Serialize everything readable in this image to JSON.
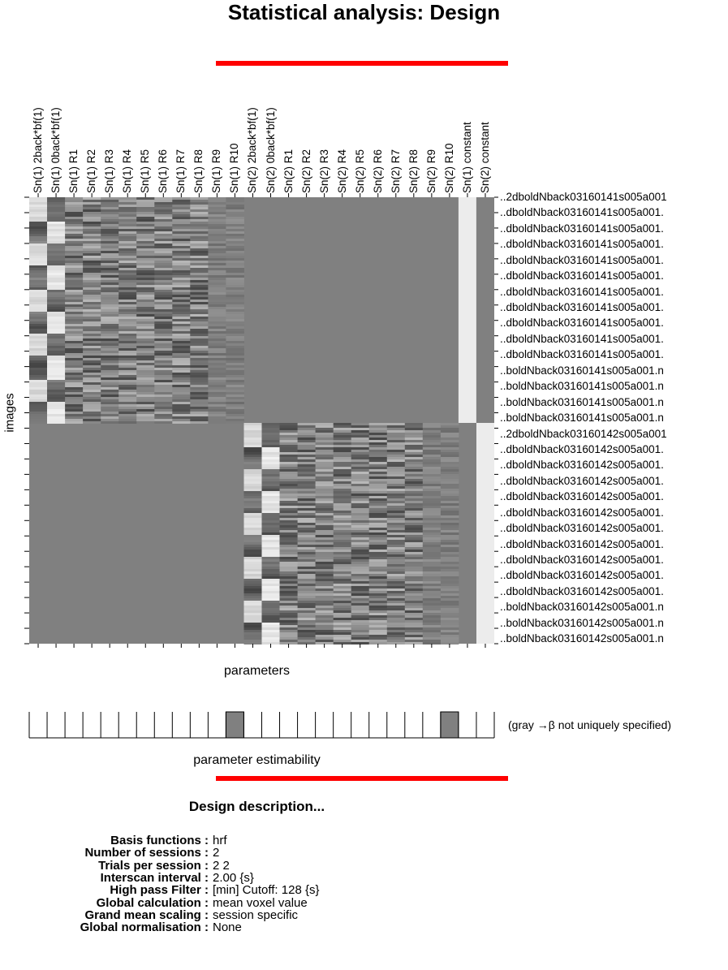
{
  "title": "Statistical analysis: Design",
  "y_axis_label": "images",
  "x_axis_label": "parameters",
  "estimability_label": "parameter estimability",
  "estimability_note": "(gray →β not uniquely specified)",
  "columns": [
    "Sn(1) 2back*bf(1)",
    "Sn(1) 0back*bf(1)",
    "Sn(1) R1",
    "Sn(1) R2",
    "Sn(1) R3",
    "Sn(1) R4",
    "Sn(1) R5",
    "Sn(1) R6",
    "Sn(1) R7",
    "Sn(1) R8",
    "Sn(1) R9",
    "Sn(1) R10",
    "Sn(2) 2back*bf(1)",
    "Sn(2) 0back*bf(1)",
    "Sn(2) R1",
    "Sn(2) R2",
    "Sn(2) R3",
    "Sn(2) R4",
    "Sn(2) R5",
    "Sn(2) R6",
    "Sn(2) R7",
    "Sn(2) R8",
    "Sn(2) R9",
    "Sn(2) R10",
    "Sn(1) constant",
    "Sn(2) constant"
  ],
  "rows": [
    "..2dboldNback03160141s005a001",
    "..dboldNback03160141s005a001.",
    "..dboldNback03160141s005a001.",
    "..dboldNback03160141s005a001.",
    "..dboldNback03160141s005a001.",
    "..dboldNback03160141s005a001.",
    "..dboldNback03160141s005a001.",
    "..dboldNback03160141s005a001.",
    "..dboldNback03160141s005a001.",
    "..dboldNback03160141s005a001.",
    "..dboldNback03160141s005a001.",
    "..boldNback03160141s005a001.n",
    "..boldNback03160141s005a001.n",
    "..boldNback03160141s005a001.n",
    "..boldNback03160141s005a001.n",
    "..2dboldNback03160142s005a001",
    "..dboldNback03160142s005a001.",
    "..dboldNback03160142s005a001.",
    "..dboldNback03160142s005a001.",
    "..dboldNback03160142s005a001.",
    "..dboldNback03160142s005a001.",
    "..dboldNback03160142s005a001.",
    "..dboldNback03160142s005a001.",
    "..dboldNback03160142s005a001.",
    "..dboldNback03160142s005a001.",
    "..dboldNback03160142s005a001.",
    "..boldNback03160142s005a001.n",
    "..boldNback03160142s005a001.n",
    "..boldNback03160142s005a001.n"
  ],
  "estimability_gray": [
    11,
    23
  ],
  "description_heading": "Design description...",
  "description": [
    {
      "key": "Basis functions :",
      "value": "hrf"
    },
    {
      "key": "Number of sessions :",
      "value": "2"
    },
    {
      "key": "Trials per session :",
      "value": "2  2"
    },
    {
      "key": "Interscan interval :",
      "value": "2.00 {s}"
    },
    {
      "key": "High pass Filter :",
      "value": "[min] Cutoff: 128 {s}"
    },
    {
      "key": "Global calculation :",
      "value": "mean voxel value"
    },
    {
      "key": "Grand mean scaling :",
      "value": "session specific"
    },
    {
      "key": "Global normalisation :",
      "value": "None"
    }
  ],
  "colors": {
    "accent_bar": "#ff0000",
    "matrix_background": "#808080",
    "gray_cell": "#808080"
  }
}
